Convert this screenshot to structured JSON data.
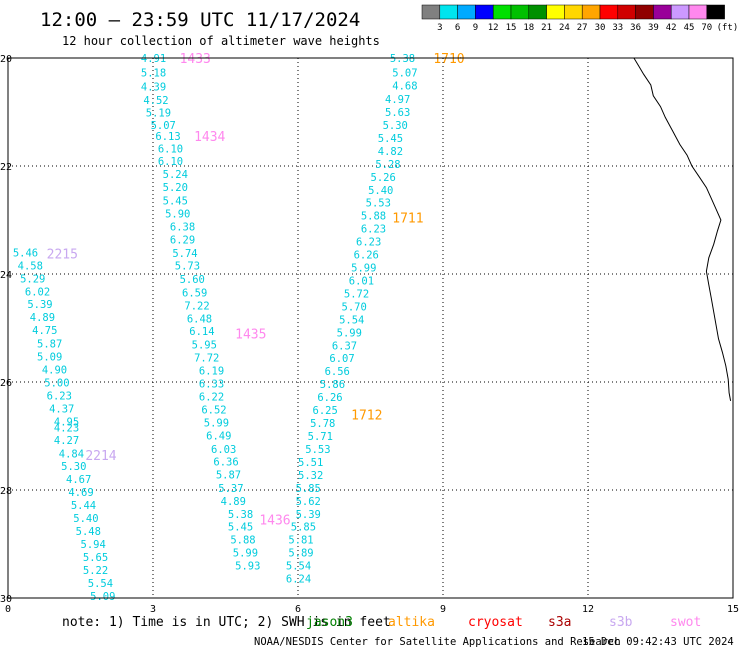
{
  "header": {
    "title": "12:00 – 23:59 UTC 11/17/2024",
    "subtitle": "12 hour collection of altimeter wave heights"
  },
  "colorbar": {
    "labels": [
      "3",
      "6",
      "9",
      "12",
      "15",
      "18",
      "21",
      "24",
      "27",
      "30",
      "33",
      "36",
      "39",
      "42",
      "45",
      "70"
    ],
    "unit": "(ft)",
    "colors": [
      "#808080",
      "#00e5ee",
      "#00aaff",
      "#0000ff",
      "#00e000",
      "#00c000",
      "#009000",
      "#ffff00",
      "#ffd700",
      "#ffa500",
      "#ff0000",
      "#d00000",
      "#900000",
      "#990099",
      "#cc99ff",
      "#ff88ee",
      "#000000"
    ]
  },
  "footer": {
    "note": "note:  1) Time is in UTC; 2) SWH is in feet",
    "satellites": [
      {
        "name": "jason3",
        "color": "#008000"
      },
      {
        "name": "altika",
        "color": "#ff9900"
      },
      {
        "name": "cryosat",
        "color": "#ff0000"
      },
      {
        "name": "s3a",
        "color": "#aa0000"
      },
      {
        "name": "s3b",
        "color": "#c8a8f0"
      },
      {
        "name": "swot",
        "color": "#ff88ee"
      }
    ],
    "credit": "NOAA/NESDIS Center for Satellite Applications and Research",
    "timestamp": "15 Dec 09:42:43 UTC 2024"
  },
  "chart_data": {
    "type": "scatter",
    "title": "12:00 – 23:59 UTC 11/17/2024",
    "subtitle": "12 hour collection of altimeter wave heights",
    "xlim": [
      0,
      15
    ],
    "ylim": [
      -30,
      -20
    ],
    "x_ticks": [
      0,
      3,
      6,
      9,
      12,
      15
    ],
    "y_ticks": [
      -20,
      -22,
      -24,
      -26,
      -28,
      -30
    ],
    "x_tick_labels": [
      "0",
      "3",
      "6",
      "9",
      "12",
      "15"
    ],
    "y_tick_labels": [
      "20",
      "22",
      "24",
      "26",
      "28",
      "30"
    ],
    "grid": true,
    "value_color": "#00ccdd",
    "pass_labels": [
      {
        "text": "1433",
        "x": 3.55,
        "y": -20.0,
        "color": "#ff88ee"
      },
      {
        "text": "1434",
        "x": 3.85,
        "y": -21.44,
        "color": "#ff88ee"
      },
      {
        "text": "1435",
        "x": 4.7,
        "y": -25.1,
        "color": "#ff88ee"
      },
      {
        "text": "1436",
        "x": 5.2,
        "y": -28.55,
        "color": "#ff88ee"
      },
      {
        "text": "2215",
        "x": 0.8,
        "y": -23.62,
        "color": "#c8a8f0"
      },
      {
        "text": "2214",
        "x": 1.6,
        "y": -27.35,
        "color": "#c8a8f0"
      },
      {
        "text": "1710",
        "x": 8.8,
        "y": -20.0,
        "color": "#ff9900"
      },
      {
        "text": "1711",
        "x": 7.95,
        "y": -22.95,
        "color": "#ff9900"
      },
      {
        "text": "1712",
        "x": 7.1,
        "y": -26.6,
        "color": "#ff9900"
      }
    ],
    "series": [
      {
        "points": [
          [
            2.75,
            -20.0,
            "4.91"
          ],
          [
            2.75,
            -20.27,
            "5.18"
          ],
          [
            2.75,
            -20.53,
            "4.39"
          ],
          [
            2.8,
            -20.78,
            "4.52"
          ],
          [
            2.85,
            -21.01,
            "5.19"
          ],
          [
            2.95,
            -21.24,
            "5.07"
          ],
          [
            3.05,
            -21.44,
            "6.13"
          ],
          [
            3.1,
            -21.68,
            "6.10"
          ],
          [
            3.1,
            -21.91,
            "6.10"
          ],
          [
            3.2,
            -22.15,
            "5.24"
          ],
          [
            3.2,
            -22.39,
            "5.20"
          ],
          [
            3.2,
            -22.64,
            "5.45"
          ],
          [
            3.25,
            -22.88,
            "5.90"
          ],
          [
            3.35,
            -23.12,
            "6.38"
          ],
          [
            3.35,
            -23.36,
            "6.29"
          ],
          [
            3.4,
            -23.61,
            "5.74"
          ],
          [
            3.45,
            -23.84,
            "5.73"
          ],
          [
            3.55,
            -24.09,
            "5.60"
          ],
          [
            3.6,
            -24.34,
            "6.59"
          ],
          [
            3.65,
            -24.58,
            "7.22"
          ],
          [
            3.7,
            -24.82,
            "6.48"
          ],
          [
            3.75,
            -25.06,
            "6.14"
          ],
          [
            3.8,
            -25.31,
            "5.95"
          ],
          [
            3.85,
            -25.55,
            "7.72"
          ],
          [
            3.95,
            -25.79,
            "6.19"
          ],
          [
            3.95,
            -26.03,
            "6.33"
          ],
          [
            3.95,
            -26.27,
            "6.22"
          ],
          [
            4.0,
            -26.51,
            "6.52"
          ],
          [
            4.05,
            -26.75,
            "5.99"
          ],
          [
            4.1,
            -26.99,
            "6.49"
          ],
          [
            4.2,
            -27.24,
            "6.03"
          ],
          [
            4.25,
            -27.47,
            "6.36"
          ],
          [
            4.3,
            -27.71,
            "5.87"
          ],
          [
            4.35,
            -27.96,
            "5.37"
          ],
          [
            4.4,
            -28.2,
            "4.89"
          ],
          [
            4.55,
            -28.44,
            "5.38"
          ],
          [
            4.55,
            -28.68,
            "5.45"
          ],
          [
            4.6,
            -28.92,
            "5.88"
          ],
          [
            4.65,
            -29.16,
            "5.99"
          ],
          [
            4.7,
            -29.4,
            "5.93"
          ]
        ]
      },
      {
        "points": [
          [
            0.1,
            -23.6,
            "5.46"
          ],
          [
            0.2,
            -23.84,
            "4.58"
          ],
          [
            0.25,
            -24.08,
            "5.29"
          ],
          [
            0.35,
            -24.32,
            "6.02"
          ],
          [
            0.4,
            -24.56,
            "5.39"
          ],
          [
            0.45,
            -24.8,
            "4.89"
          ],
          [
            0.5,
            -25.04,
            "4.75"
          ],
          [
            0.6,
            -25.29,
            "5.87"
          ],
          [
            0.6,
            -25.53,
            "5.09"
          ],
          [
            0.7,
            -25.77,
            "4.90"
          ],
          [
            0.75,
            -26.01,
            "5.00"
          ],
          [
            0.8,
            -26.25,
            "6.23"
          ],
          [
            0.85,
            -26.49,
            "4.37"
          ],
          [
            0.95,
            -26.73,
            "4.95"
          ],
          [
            0.95,
            -26.84,
            "4.23"
          ],
          [
            0.95,
            -27.07,
            "4.27"
          ],
          [
            1.05,
            -27.32,
            "4.84"
          ],
          [
            1.1,
            -27.56,
            "5.30"
          ],
          [
            1.2,
            -27.8,
            "4.67"
          ],
          [
            1.25,
            -28.04,
            "4.69"
          ],
          [
            1.3,
            -28.28,
            "5.44"
          ],
          [
            1.35,
            -28.52,
            "5.40"
          ],
          [
            1.4,
            -28.76,
            "5.48"
          ],
          [
            1.5,
            -29.0,
            "5.94"
          ],
          [
            1.55,
            -29.24,
            "5.65"
          ],
          [
            1.55,
            -29.48,
            "5.22"
          ],
          [
            1.65,
            -29.72,
            "5.54"
          ],
          [
            1.7,
            -29.96,
            "5.09"
          ]
        ]
      },
      {
        "points": [
          [
            7.9,
            -20.0,
            "5.38"
          ],
          [
            7.95,
            -20.27,
            "5.07"
          ],
          [
            7.95,
            -20.51,
            "4.68"
          ],
          [
            7.8,
            -20.76,
            "4.97"
          ],
          [
            7.8,
            -21.0,
            "5.63"
          ],
          [
            7.75,
            -21.24,
            "5.30"
          ],
          [
            7.65,
            -21.48,
            "5.45"
          ],
          [
            7.65,
            -21.72,
            "4.82"
          ],
          [
            7.6,
            -21.96,
            "5.28"
          ],
          [
            7.5,
            -22.2,
            "5.26"
          ],
          [
            7.45,
            -22.44,
            "5.40"
          ],
          [
            7.4,
            -22.68,
            "5.53"
          ],
          [
            7.3,
            -22.92,
            "5.88"
          ],
          [
            7.3,
            -23.16,
            "6.23"
          ],
          [
            7.2,
            -23.4,
            "6.23"
          ],
          [
            7.15,
            -23.64,
            "6.26"
          ],
          [
            7.1,
            -23.88,
            "5.99"
          ],
          [
            7.05,
            -24.12,
            "6.01"
          ],
          [
            6.95,
            -24.36,
            "5.72"
          ],
          [
            6.9,
            -24.6,
            "5.70"
          ],
          [
            6.85,
            -24.84,
            "5.54"
          ],
          [
            6.8,
            -25.08,
            "5.99"
          ],
          [
            6.7,
            -25.32,
            "6.37"
          ],
          [
            6.65,
            -25.56,
            "6.07"
          ],
          [
            6.55,
            -25.8,
            "6.56"
          ],
          [
            6.45,
            -26.04,
            "5.86"
          ],
          [
            6.4,
            -26.28,
            "6.26"
          ],
          [
            6.3,
            -26.52,
            "6.25"
          ],
          [
            6.25,
            -26.76,
            "5.78"
          ],
          [
            6.2,
            -27.0,
            "5.71"
          ],
          [
            6.15,
            -27.24,
            "5.53"
          ],
          [
            6.0,
            -27.48,
            "5.51"
          ],
          [
            6.0,
            -27.72,
            "5.32"
          ],
          [
            5.95,
            -27.96,
            "5.85"
          ],
          [
            5.95,
            -28.2,
            "5.62"
          ],
          [
            5.95,
            -28.44,
            "5.39"
          ],
          [
            5.85,
            -28.68,
            "5.85"
          ],
          [
            5.8,
            -28.92,
            "5.81"
          ],
          [
            5.8,
            -29.16,
            "5.89"
          ],
          [
            5.75,
            -29.4,
            "5.54"
          ],
          [
            5.75,
            -29.64,
            "6.24"
          ]
        ]
      }
    ],
    "coastline": [
      [
        12.95,
        -20.0
      ],
      [
        13.05,
        -20.15
      ],
      [
        13.15,
        -20.3
      ],
      [
        13.3,
        -20.5
      ],
      [
        13.35,
        -20.7
      ],
      [
        13.5,
        -20.9
      ],
      [
        13.6,
        -21.1
      ],
      [
        13.75,
        -21.35
      ],
      [
        13.9,
        -21.6
      ],
      [
        14.05,
        -21.8
      ],
      [
        14.15,
        -22.0
      ],
      [
        14.3,
        -22.2
      ],
      [
        14.45,
        -22.4
      ],
      [
        14.55,
        -22.6
      ],
      [
        14.65,
        -22.8
      ],
      [
        14.75,
        -23.0
      ],
      [
        14.68,
        -23.2
      ],
      [
        14.6,
        -23.45
      ],
      [
        14.5,
        -23.7
      ],
      [
        14.45,
        -23.95
      ],
      [
        14.5,
        -24.2
      ],
      [
        14.55,
        -24.45
      ],
      [
        14.6,
        -24.7
      ],
      [
        14.65,
        -24.95
      ],
      [
        14.7,
        -25.2
      ],
      [
        14.78,
        -25.45
      ],
      [
        14.85,
        -25.7
      ],
      [
        14.9,
        -25.95
      ],
      [
        14.92,
        -26.2
      ],
      [
        14.95,
        -26.35
      ]
    ]
  }
}
